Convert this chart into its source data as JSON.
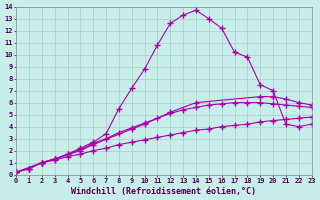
{
  "xlabel": "Windchill (Refroidissement éolien,°C)",
  "xlim": [
    0,
    23
  ],
  "ylim": [
    0,
    14
  ],
  "xticks": [
    0,
    1,
    2,
    3,
    4,
    5,
    6,
    7,
    8,
    9,
    10,
    11,
    12,
    13,
    14,
    15,
    16,
    17,
    18,
    19,
    20,
    21,
    22,
    23
  ],
  "yticks": [
    0,
    1,
    2,
    3,
    4,
    5,
    6,
    7,
    8,
    9,
    10,
    11,
    12,
    13,
    14
  ],
  "bg_color": "#c8eeea",
  "line_color": "#aa00aa",
  "grid_color": "#aacccc",
  "curves": [
    {
      "x": [
        0,
        1,
        2,
        3,
        4,
        5,
        6,
        7,
        8,
        9,
        10,
        11,
        12,
        13,
        14,
        15,
        16,
        17,
        18,
        19,
        20,
        21,
        22,
        23
      ],
      "y": [
        0.2,
        0.5,
        1.0,
        1.2,
        1.5,
        1.7,
        2.0,
        2.2,
        2.5,
        2.7,
        2.9,
        3.1,
        3.3,
        3.5,
        3.7,
        3.8,
        4.0,
        4.1,
        4.2,
        4.4,
        4.5,
        4.6,
        4.7,
        4.8
      ]
    },
    {
      "x": [
        0,
        1,
        2,
        3,
        4,
        5,
        6,
        7,
        8,
        9,
        10,
        11,
        12,
        13,
        14,
        15,
        16,
        17,
        18,
        19,
        20,
        21,
        22,
        23
      ],
      "y": [
        0.2,
        0.5,
        1.0,
        1.3,
        1.7,
        2.1,
        2.6,
        3.0,
        3.5,
        3.9,
        4.3,
        4.7,
        5.1,
        5.4,
        5.6,
        5.8,
        5.9,
        6.0,
        6.0,
        6.0,
        5.9,
        5.8,
        5.7,
        5.6
      ]
    },
    {
      "x": [
        0,
        2,
        3,
        5,
        6,
        9,
        10,
        12,
        14,
        19,
        20,
        21,
        22,
        23
      ],
      "y": [
        0.2,
        1.0,
        1.3,
        2.0,
        2.5,
        3.8,
        4.2,
        5.2,
        6.0,
        6.5,
        6.5,
        6.3,
        6.0,
        5.8
      ]
    },
    {
      "x": [
        0,
        1,
        2,
        3,
        4,
        5,
        6,
        7,
        8,
        9,
        10,
        11,
        12,
        13,
        14,
        15,
        16,
        17,
        18,
        19,
        20,
        21,
        22,
        23
      ],
      "y": [
        0.2,
        0.5,
        1.0,
        1.3,
        1.7,
        2.2,
        2.7,
        3.4,
        5.5,
        7.2,
        8.8,
        10.8,
        12.6,
        13.3,
        13.7,
        13.0,
        12.2,
        10.2,
        9.8,
        7.5,
        7.0,
        4.2,
        4.0,
        4.2
      ]
    }
  ]
}
